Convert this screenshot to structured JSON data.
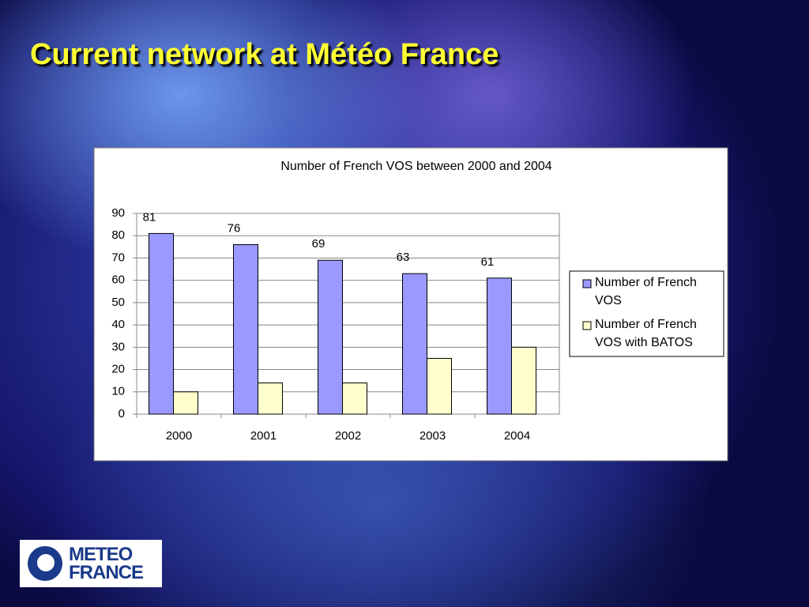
{
  "title": "Current network at Météo France",
  "logo": [
    "METEO",
    "FRANCE"
  ],
  "chart_data": {
    "type": "bar",
    "title": "Number of French VOS between 2000 and 2004",
    "categories": [
      "2000",
      "2001",
      "2002",
      "2003",
      "2004"
    ],
    "series": [
      {
        "name": "Number of French VOS",
        "color": "#9999ff",
        "values": [
          81,
          76,
          69,
          63,
          61
        ],
        "show_labels": true
      },
      {
        "name": "Number of French VOS with BATOS",
        "color": "#ffffcc",
        "values": [
          10,
          14,
          14,
          25,
          30
        ],
        "show_labels": false
      }
    ],
    "ylim": [
      0,
      90
    ],
    "yticks": [
      0,
      10,
      20,
      30,
      40,
      50,
      60,
      70,
      80,
      90
    ],
    "grid": true,
    "legend": "right"
  }
}
